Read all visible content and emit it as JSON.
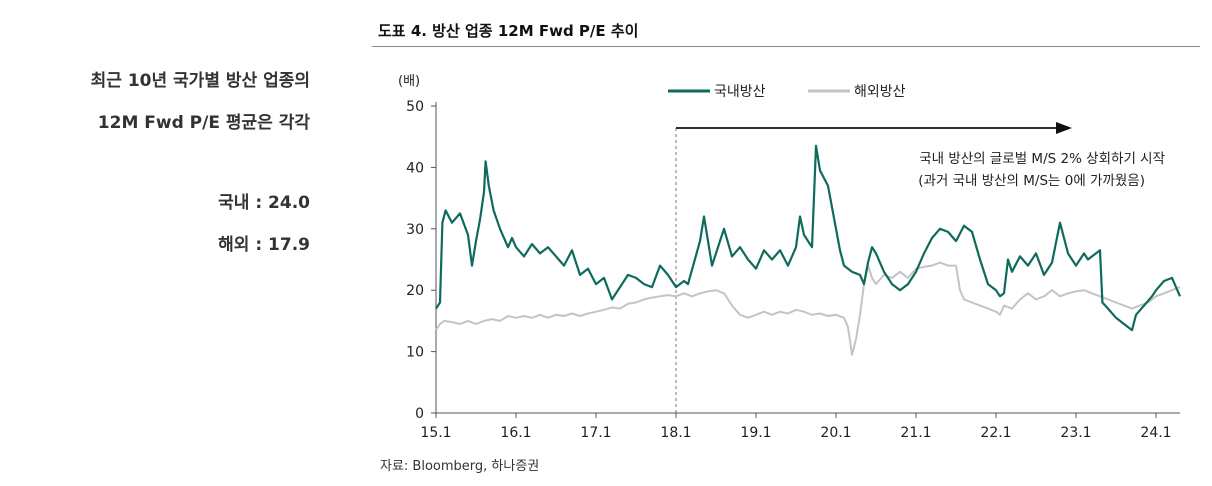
{
  "sidebar": {
    "line1": "최근 10년 국가별 방산 업종의",
    "line2": "12M Fwd P/E 평균은 각각",
    "stat_domestic": "국내 : 24.0",
    "stat_overseas": "해외 : 17.9"
  },
  "source": "자료: Bloomberg, 하나증권",
  "chart_data": {
    "type": "line",
    "title": "도표 4. 방산 업종 12M Fwd P/E 추이",
    "ylabel": "(배)",
    "xlabel": "",
    "ylim": [
      0,
      50
    ],
    "yticks": [
      0,
      10,
      20,
      30,
      40,
      50
    ],
    "xlim": [
      2015.0,
      2024.3
    ],
    "xticks": [
      {
        "x": 2015.0,
        "label": "15.1"
      },
      {
        "x": 2016.0,
        "label": "16.1"
      },
      {
        "x": 2017.0,
        "label": "17.1"
      },
      {
        "x": 2018.0,
        "label": "18.1"
      },
      {
        "x": 2019.0,
        "label": "19.1"
      },
      {
        "x": 2020.0,
        "label": "20.1"
      },
      {
        "x": 2021.0,
        "label": "21.1"
      },
      {
        "x": 2022.0,
        "label": "22.1"
      },
      {
        "x": 2023.0,
        "label": "23.1"
      },
      {
        "x": 2024.0,
        "label": "24.1"
      }
    ],
    "grid": false,
    "legend": "top-center",
    "series": [
      {
        "name": "국내방산",
        "color": "#0e6b5c",
        "points": [
          [
            2015.0,
            17.0
          ],
          [
            2015.05,
            18.0
          ],
          [
            2015.08,
            31.0
          ],
          [
            2015.12,
            33.0
          ],
          [
            2015.2,
            31.0
          ],
          [
            2015.3,
            32.5
          ],
          [
            2015.4,
            29.0
          ],
          [
            2015.45,
            24.0
          ],
          [
            2015.5,
            28.0
          ],
          [
            2015.55,
            31.5
          ],
          [
            2015.6,
            36.0
          ],
          [
            2015.62,
            41.0
          ],
          [
            2015.66,
            37.0
          ],
          [
            2015.72,
            33.0
          ],
          [
            2015.8,
            30.0
          ],
          [
            2015.9,
            27.0
          ],
          [
            2015.95,
            28.5
          ],
          [
            2016.0,
            27.0
          ],
          [
            2016.1,
            25.5
          ],
          [
            2016.2,
            27.5
          ],
          [
            2016.3,
            26.0
          ],
          [
            2016.4,
            27.0
          ],
          [
            2016.5,
            25.5
          ],
          [
            2016.6,
            24.0
          ],
          [
            2016.7,
            26.5
          ],
          [
            2016.8,
            22.5
          ],
          [
            2016.9,
            23.5
          ],
          [
            2017.0,
            21.0
          ],
          [
            2017.1,
            22.0
          ],
          [
            2017.2,
            18.5
          ],
          [
            2017.3,
            20.5
          ],
          [
            2017.4,
            22.5
          ],
          [
            2017.5,
            22.0
          ],
          [
            2017.6,
            21.0
          ],
          [
            2017.7,
            20.5
          ],
          [
            2017.8,
            24.0
          ],
          [
            2017.9,
            22.5
          ],
          [
            2018.0,
            20.5
          ],
          [
            2018.1,
            21.5
          ],
          [
            2018.15,
            21.0
          ],
          [
            2018.3,
            28.0
          ],
          [
            2018.35,
            32.0
          ],
          [
            2018.45,
            24.0
          ],
          [
            2018.6,
            30.0
          ],
          [
            2018.7,
            25.5
          ],
          [
            2018.8,
            27.0
          ],
          [
            2018.9,
            25.0
          ],
          [
            2019.0,
            23.5
          ],
          [
            2019.1,
            26.5
          ],
          [
            2019.2,
            25.0
          ],
          [
            2019.3,
            26.5
          ],
          [
            2019.4,
            24.0
          ],
          [
            2019.5,
            27.0
          ],
          [
            2019.55,
            32.0
          ],
          [
            2019.6,
            29.0
          ],
          [
            2019.7,
            27.0
          ],
          [
            2019.75,
            43.5
          ],
          [
            2019.8,
            39.5
          ],
          [
            2019.9,
            37.0
          ],
          [
            2020.0,
            30.0
          ],
          [
            2020.05,
            26.5
          ],
          [
            2020.1,
            24.0
          ],
          [
            2020.2,
            23.0
          ],
          [
            2020.3,
            22.5
          ],
          [
            2020.35,
            21.0
          ],
          [
            2020.4,
            24.5
          ],
          [
            2020.45,
            27.0
          ],
          [
            2020.5,
            26.0
          ],
          [
            2020.6,
            23.0
          ],
          [
            2020.7,
            21.0
          ],
          [
            2020.8,
            20.0
          ],
          [
            2020.9,
            21.0
          ],
          [
            2021.0,
            23.0
          ],
          [
            2021.1,
            26.0
          ],
          [
            2021.2,
            28.5
          ],
          [
            2021.3,
            30.0
          ],
          [
            2021.4,
            29.5
          ],
          [
            2021.5,
            28.0
          ],
          [
            2021.6,
            30.5
          ],
          [
            2021.7,
            29.5
          ],
          [
            2021.8,
            25.0
          ],
          [
            2021.9,
            21.0
          ],
          [
            2022.0,
            20.0
          ],
          [
            2022.05,
            19.0
          ],
          [
            2022.1,
            19.5
          ],
          [
            2022.15,
            25.0
          ],
          [
            2022.2,
            23.0
          ],
          [
            2022.3,
            25.5
          ],
          [
            2022.4,
            24.0
          ],
          [
            2022.5,
            26.0
          ],
          [
            2022.6,
            22.5
          ],
          [
            2022.7,
            24.5
          ],
          [
            2022.8,
            31.0
          ],
          [
            2022.9,
            26.0
          ],
          [
            2023.0,
            24.0
          ],
          [
            2023.1,
            26.0
          ],
          [
            2023.15,
            25.0
          ],
          [
            2023.2,
            25.5
          ],
          [
            2023.3,
            26.5
          ],
          [
            2023.33,
            18.0
          ],
          [
            2023.4,
            17.0
          ],
          [
            2023.5,
            15.5
          ],
          [
            2023.6,
            14.5
          ],
          [
            2023.7,
            13.5
          ],
          [
            2023.75,
            16.0
          ],
          [
            2023.85,
            17.5
          ],
          [
            2023.95,
            19.0
          ],
          [
            2024.0,
            20.0
          ],
          [
            2024.1,
            21.5
          ],
          [
            2024.2,
            22.0
          ],
          [
            2024.3,
            19.0
          ]
        ]
      },
      {
        "name": "해외방산",
        "color": "#c4c4c4",
        "points": [
          [
            2015.0,
            13.5
          ],
          [
            2015.05,
            14.5
          ],
          [
            2015.1,
            15.0
          ],
          [
            2015.2,
            14.8
          ],
          [
            2015.3,
            14.5
          ],
          [
            2015.4,
            15.0
          ],
          [
            2015.5,
            14.5
          ],
          [
            2015.6,
            15.0
          ],
          [
            2015.7,
            15.3
          ],
          [
            2015.8,
            15.0
          ],
          [
            2015.9,
            15.8
          ],
          [
            2016.0,
            15.5
          ],
          [
            2016.1,
            15.8
          ],
          [
            2016.2,
            15.5
          ],
          [
            2016.3,
            16.0
          ],
          [
            2016.4,
            15.5
          ],
          [
            2016.5,
            16.0
          ],
          [
            2016.6,
            15.8
          ],
          [
            2016.7,
            16.2
          ],
          [
            2016.8,
            15.8
          ],
          [
            2016.9,
            16.2
          ],
          [
            2017.0,
            16.5
          ],
          [
            2017.1,
            16.8
          ],
          [
            2017.2,
            17.2
          ],
          [
            2017.3,
            17.0
          ],
          [
            2017.4,
            17.8
          ],
          [
            2017.5,
            18.0
          ],
          [
            2017.6,
            18.5
          ],
          [
            2017.7,
            18.8
          ],
          [
            2017.8,
            19.0
          ],
          [
            2017.9,
            19.2
          ],
          [
            2018.0,
            19.0
          ],
          [
            2018.1,
            19.5
          ],
          [
            2018.2,
            19.0
          ],
          [
            2018.3,
            19.5
          ],
          [
            2018.4,
            19.8
          ],
          [
            2018.5,
            20.0
          ],
          [
            2018.6,
            19.5
          ],
          [
            2018.7,
            17.5
          ],
          [
            2018.8,
            16.0
          ],
          [
            2018.9,
            15.5
          ],
          [
            2019.0,
            16.0
          ],
          [
            2019.1,
            16.5
          ],
          [
            2019.2,
            16.0
          ],
          [
            2019.3,
            16.5
          ],
          [
            2019.4,
            16.2
          ],
          [
            2019.5,
            16.8
          ],
          [
            2019.6,
            16.5
          ],
          [
            2019.7,
            16.0
          ],
          [
            2019.8,
            16.2
          ],
          [
            2019.9,
            15.8
          ],
          [
            2020.0,
            16.0
          ],
          [
            2020.1,
            15.5
          ],
          [
            2020.15,
            14.0
          ],
          [
            2020.2,
            9.5
          ],
          [
            2020.25,
            12.0
          ],
          [
            2020.3,
            16.0
          ],
          [
            2020.35,
            21.0
          ],
          [
            2020.4,
            24.0
          ],
          [
            2020.45,
            22.0
          ],
          [
            2020.5,
            21.0
          ],
          [
            2020.6,
            22.5
          ],
          [
            2020.7,
            22.0
          ],
          [
            2020.8,
            23.0
          ],
          [
            2020.9,
            22.0
          ],
          [
            2021.0,
            23.5
          ],
          [
            2021.1,
            23.8
          ],
          [
            2021.2,
            24.0
          ],
          [
            2021.3,
            24.5
          ],
          [
            2021.4,
            24.0
          ],
          [
            2021.5,
            24.0
          ],
          [
            2021.55,
            20.0
          ],
          [
            2021.6,
            18.5
          ],
          [
            2021.7,
            18.0
          ],
          [
            2021.8,
            17.5
          ],
          [
            2021.9,
            17.0
          ],
          [
            2022.0,
            16.5
          ],
          [
            2022.05,
            16.0
          ],
          [
            2022.1,
            17.5
          ],
          [
            2022.2,
            17.0
          ],
          [
            2022.3,
            18.5
          ],
          [
            2022.4,
            19.5
          ],
          [
            2022.5,
            18.5
          ],
          [
            2022.6,
            19.0
          ],
          [
            2022.7,
            20.0
          ],
          [
            2022.8,
            19.0
          ],
          [
            2022.9,
            19.5
          ],
          [
            2023.0,
            19.8
          ],
          [
            2023.1,
            20.0
          ],
          [
            2023.2,
            19.5
          ],
          [
            2023.3,
            19.0
          ],
          [
            2023.4,
            18.5
          ],
          [
            2023.5,
            18.0
          ],
          [
            2023.6,
            17.5
          ],
          [
            2023.7,
            17.0
          ],
          [
            2023.8,
            17.5
          ],
          [
            2023.9,
            18.0
          ],
          [
            2024.0,
            19.0
          ],
          [
            2024.1,
            19.5
          ],
          [
            2024.2,
            20.0
          ],
          [
            2024.3,
            20.5
          ]
        ]
      }
    ],
    "annotation": {
      "x": 2018.0,
      "text_line1": "국내 방산의 글로벌 M/S 2% 상회하기 시작",
      "text_line2": "(과거 국내 방산의 M/S는 0에 가까웠음)"
    }
  }
}
